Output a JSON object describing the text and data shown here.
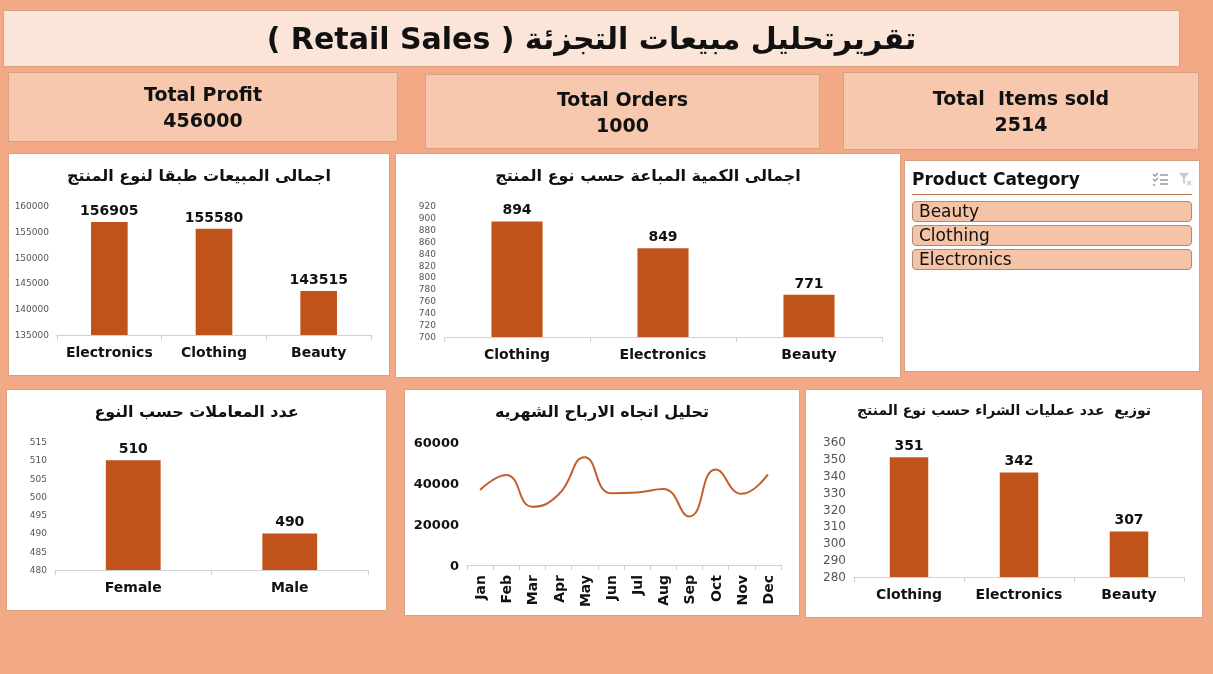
{
  "chart_data": [
    {
      "type": "other",
      "title": "تقريرتحليل مبيعات التجزئة ( Retail Sales )"
    },
    {
      "type": "other",
      "title": "Total Profit",
      "annotations": [
        "456000"
      ]
    },
    {
      "type": "other",
      "title": "Total Orders",
      "annotations": [
        "1000"
      ]
    },
    {
      "type": "other",
      "title": "Total  Items sold",
      "annotations": [
        "2514"
      ]
    },
    {
      "type": "bar",
      "title": "اجمالى المبيعات طبقا لنوع المنتج",
      "categories": [
        "Electronics",
        "Clothing",
        "Beauty"
      ],
      "values": [
        156905,
        155580,
        143515
      ],
      "color": "#c0531a",
      "ylim": [
        135000,
        160000
      ],
      "yticks": [
        135000,
        140000,
        145000,
        150000,
        155000,
        160000
      ],
      "data_labels": true
    },
    {
      "type": "bar",
      "title": "اجمالى الكمية المباعة حسب نوع المنتج",
      "categories": [
        "Clothing",
        "Electronics",
        "Beauty"
      ],
      "values": [
        894,
        849,
        771
      ],
      "color": "#c0531a",
      "ylim": [
        700,
        920
      ],
      "yticks": [
        700,
        720,
        740,
        760,
        780,
        800,
        820,
        840,
        860,
        880,
        900,
        920
      ],
      "data_labels": true
    },
    {
      "type": "other",
      "title": "Product Category",
      "annotations": [
        "Beauty",
        "Clothing",
        "Electronics"
      ]
    },
    {
      "type": "bar",
      "title": "عدد المعاملات حسب النوع",
      "categories": [
        "Female",
        "Male"
      ],
      "values": [
        510,
        490
      ],
      "color": "#c0531a",
      "ylim": [
        480,
        515
      ],
      "yticks": [
        480,
        485,
        490,
        495,
        500,
        505,
        510,
        515
      ],
      "data_labels": true
    },
    {
      "type": "line",
      "title": "تحليل اتجاه الارباح الشهريه",
      "categories": [
        "Jan",
        "Feb",
        "Mar",
        "Apr",
        "May",
        "Jun",
        "Jul",
        "Aug",
        "Sep",
        "Oct",
        "Nov",
        "Dec"
      ],
      "values": [
        36600,
        43900,
        28400,
        34400,
        52600,
        35000,
        35400,
        37100,
        23700,
        46600,
        34700,
        44200
      ],
      "color": "#c0602a",
      "ylim": [
        0,
        60000
      ],
      "yticks": [
        0,
        20000,
        40000,
        60000
      ]
    },
    {
      "type": "bar",
      "title": "توزيع  عدد عمليات الشراء حسب نوع المنتج",
      "categories": [
        "Clothing",
        "Electronics",
        "Beauty"
      ],
      "values": [
        351,
        342,
        307
      ],
      "color": "#c0531a",
      "ylim": [
        280,
        360
      ],
      "yticks": [
        280,
        290,
        300,
        310,
        320,
        330,
        340,
        350,
        360
      ],
      "data_labels": true
    }
  ]
}
